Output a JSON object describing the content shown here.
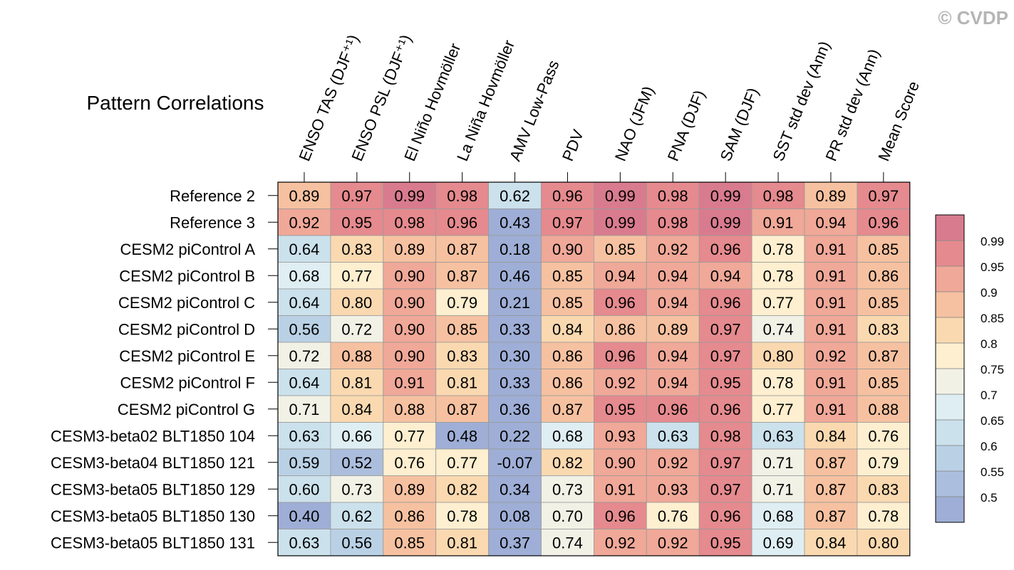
{
  "chart_data": {
    "type": "heatmap",
    "title": "Pattern Correlations",
    "watermark": "© CVDP",
    "columns": [
      "ENSO TAS (DJF⁺¹)",
      "ENSO PSL (DJF⁺¹)",
      "El Niño Hovmöller",
      "La Niña Hovmöller",
      "AMV Low-Pass",
      "PDV",
      "NAO (JFM)",
      "PNA (DJF)",
      "SAM (DJF)",
      "SST std dev (Ann)",
      "PR std dev (Ann)",
      "Mean Score"
    ],
    "rows": [
      "Reference 2",
      "Reference 3",
      "CESM2 piControl A",
      "CESM2 piControl B",
      "CESM2 piControl C",
      "CESM2 piControl D",
      "CESM2 piControl E",
      "CESM2 piControl F",
      "CESM2 piControl G",
      "CESM3-beta02 BLT1850 104",
      "CESM3-beta04 BLT1850 121",
      "CESM3-beta05 BLT1850 129",
      "CESM3-beta05 BLT1850 130",
      "CESM3-beta05 BLT1850 131"
    ],
    "values": [
      [
        "0.89",
        "0.97",
        "0.99",
        "0.98",
        "0.62",
        "0.96",
        "0.99",
        "0.98",
        "0.99",
        "0.98",
        "0.89",
        "0.97"
      ],
      [
        "0.92",
        "0.95",
        "0.98",
        "0.96",
        "0.43",
        "0.97",
        "0.99",
        "0.98",
        "0.99",
        "0.91",
        "0.94",
        "0.96"
      ],
      [
        "0.64",
        "0.83",
        "0.89",
        "0.87",
        "0.18",
        "0.90",
        "0.85",
        "0.92",
        "0.96",
        "0.78",
        "0.91",
        "0.85"
      ],
      [
        "0.68",
        "0.77",
        "0.90",
        "0.87",
        "0.46",
        "0.85",
        "0.94",
        "0.94",
        "0.94",
        "0.78",
        "0.91",
        "0.86"
      ],
      [
        "0.64",
        "0.80",
        "0.90",
        "0.79",
        "0.21",
        "0.85",
        "0.96",
        "0.94",
        "0.96",
        "0.77",
        "0.91",
        "0.85"
      ],
      [
        "0.56",
        "0.72",
        "0.90",
        "0.85",
        "0.33",
        "0.84",
        "0.86",
        "0.89",
        "0.97",
        "0.74",
        "0.91",
        "0.83"
      ],
      [
        "0.72",
        "0.88",
        "0.90",
        "0.83",
        "0.30",
        "0.86",
        "0.96",
        "0.94",
        "0.97",
        "0.80",
        "0.92",
        "0.87"
      ],
      [
        "0.64",
        "0.81",
        "0.91",
        "0.81",
        "0.33",
        "0.86",
        "0.92",
        "0.94",
        "0.95",
        "0.78",
        "0.91",
        "0.85"
      ],
      [
        "0.71",
        "0.84",
        "0.88",
        "0.87",
        "0.36",
        "0.87",
        "0.95",
        "0.96",
        "0.96",
        "0.77",
        "0.91",
        "0.88"
      ],
      [
        "0.63",
        "0.66",
        "0.77",
        "0.48",
        "0.22",
        "0.68",
        "0.93",
        "0.63",
        "0.98",
        "0.63",
        "0.84",
        "0.76"
      ],
      [
        "0.59",
        "0.52",
        "0.76",
        "0.77",
        "-0.07",
        "0.82",
        "0.90",
        "0.92",
        "0.97",
        "0.71",
        "0.87",
        "0.79"
      ],
      [
        "0.60",
        "0.73",
        "0.89",
        "0.82",
        "0.34",
        "0.73",
        "0.91",
        "0.93",
        "0.97",
        "0.71",
        "0.87",
        "0.83"
      ],
      [
        "0.40",
        "0.62",
        "0.86",
        "0.78",
        "0.08",
        "0.70",
        "0.96",
        "0.76",
        "0.96",
        "0.68",
        "0.87",
        "0.78"
      ],
      [
        "0.63",
        "0.56",
        "0.85",
        "0.81",
        "0.37",
        "0.74",
        "0.92",
        "0.92",
        "0.95",
        "0.69",
        "0.84",
        "0.80"
      ]
    ],
    "colorbar": {
      "levels": [
        0.5,
        0.55,
        0.6,
        0.65,
        0.7,
        0.75,
        0.8,
        0.85,
        0.9,
        0.95,
        0.99
      ],
      "labels": [
        "0.5",
        "0.55",
        "0.6",
        "0.65",
        "0.7",
        "0.75",
        "0.8",
        "0.85",
        "0.9",
        "0.95",
        "0.99"
      ],
      "colors": [
        "#9eaed6",
        "#acbedd",
        "#bad1e5",
        "#cbe1ec",
        "#dfeef2",
        "#f1f1e6",
        "#fdefcf",
        "#fad9b0",
        "#f6c1a0",
        "#f0a898",
        "#e58a8e",
        "#d97b8e"
      ]
    }
  }
}
